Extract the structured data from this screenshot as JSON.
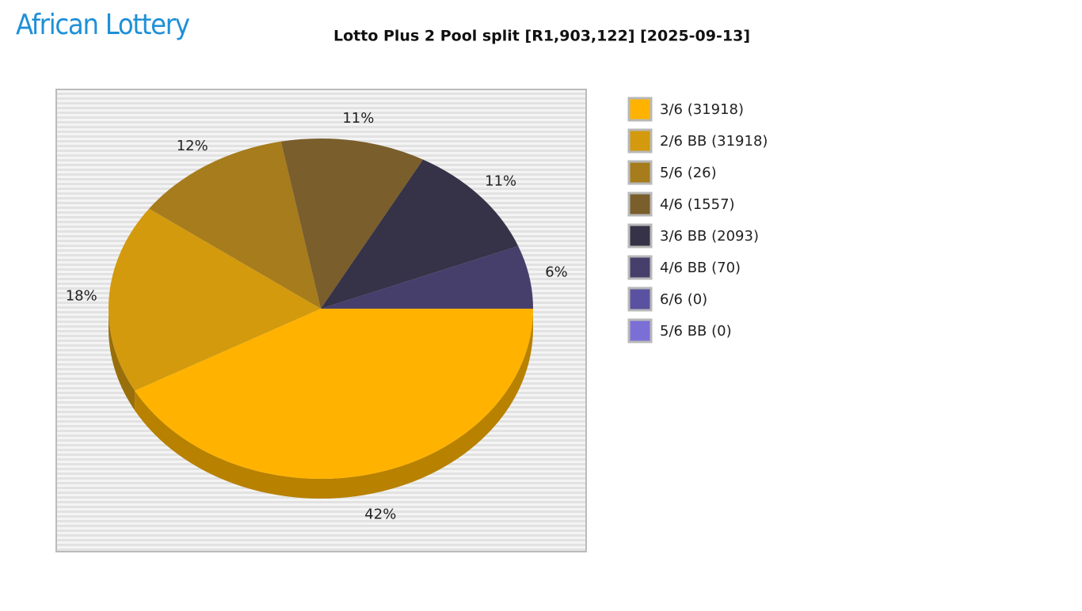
{
  "logo": "African Lottery",
  "chart_data": {
    "type": "pie",
    "title": "Lotto Plus 2 Pool split [R1,903,122] [2025-09-13]",
    "categories": [
      "3/6 (31918)",
      "2/6 BB (31918)",
      "5/6 (26)",
      "4/6 (1557)",
      "3/6 BB (2093)",
      "4/6 BB (70)",
      "6/6 (0)",
      "5/6 BB (0)"
    ],
    "values": [
      42,
      18,
      12,
      11,
      11,
      6,
      0,
      0
    ],
    "value_labels": [
      "42%",
      "18%",
      "12%",
      "11%",
      "11%",
      "6%",
      null,
      null
    ],
    "colors": [
      "#ffb300",
      "#d39a0e",
      "#a67c1c",
      "#7a5e2b",
      "#363247",
      "#463f6c",
      "#5a52a0",
      "#7b6fd6"
    ],
    "legend": "right"
  }
}
